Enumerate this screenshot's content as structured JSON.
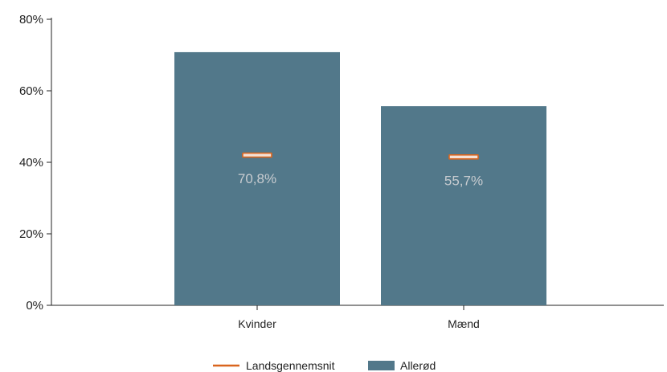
{
  "chart_data": {
    "type": "bar",
    "categories": [
      "Kvinder",
      "Mænd"
    ],
    "series": [
      {
        "name": "Allerød",
        "type": "bar",
        "values": [
          70.8,
          55.7
        ],
        "color": "#52788a"
      },
      {
        "name": "Landsgennemsnit",
        "type": "marker",
        "values": [
          42.0,
          41.5
        ],
        "color": "#d9651e"
      }
    ],
    "data_labels": [
      "70,8%",
      "55,7%"
    ],
    "ylim": [
      0,
      80
    ],
    "yticks": [
      0,
      20,
      40,
      60,
      80
    ],
    "ytick_labels": [
      "0%",
      "20%",
      "40%",
      "60%",
      "80%"
    ],
    "legend_position": "bottom",
    "title": "",
    "xlabel": "",
    "ylabel": ""
  }
}
